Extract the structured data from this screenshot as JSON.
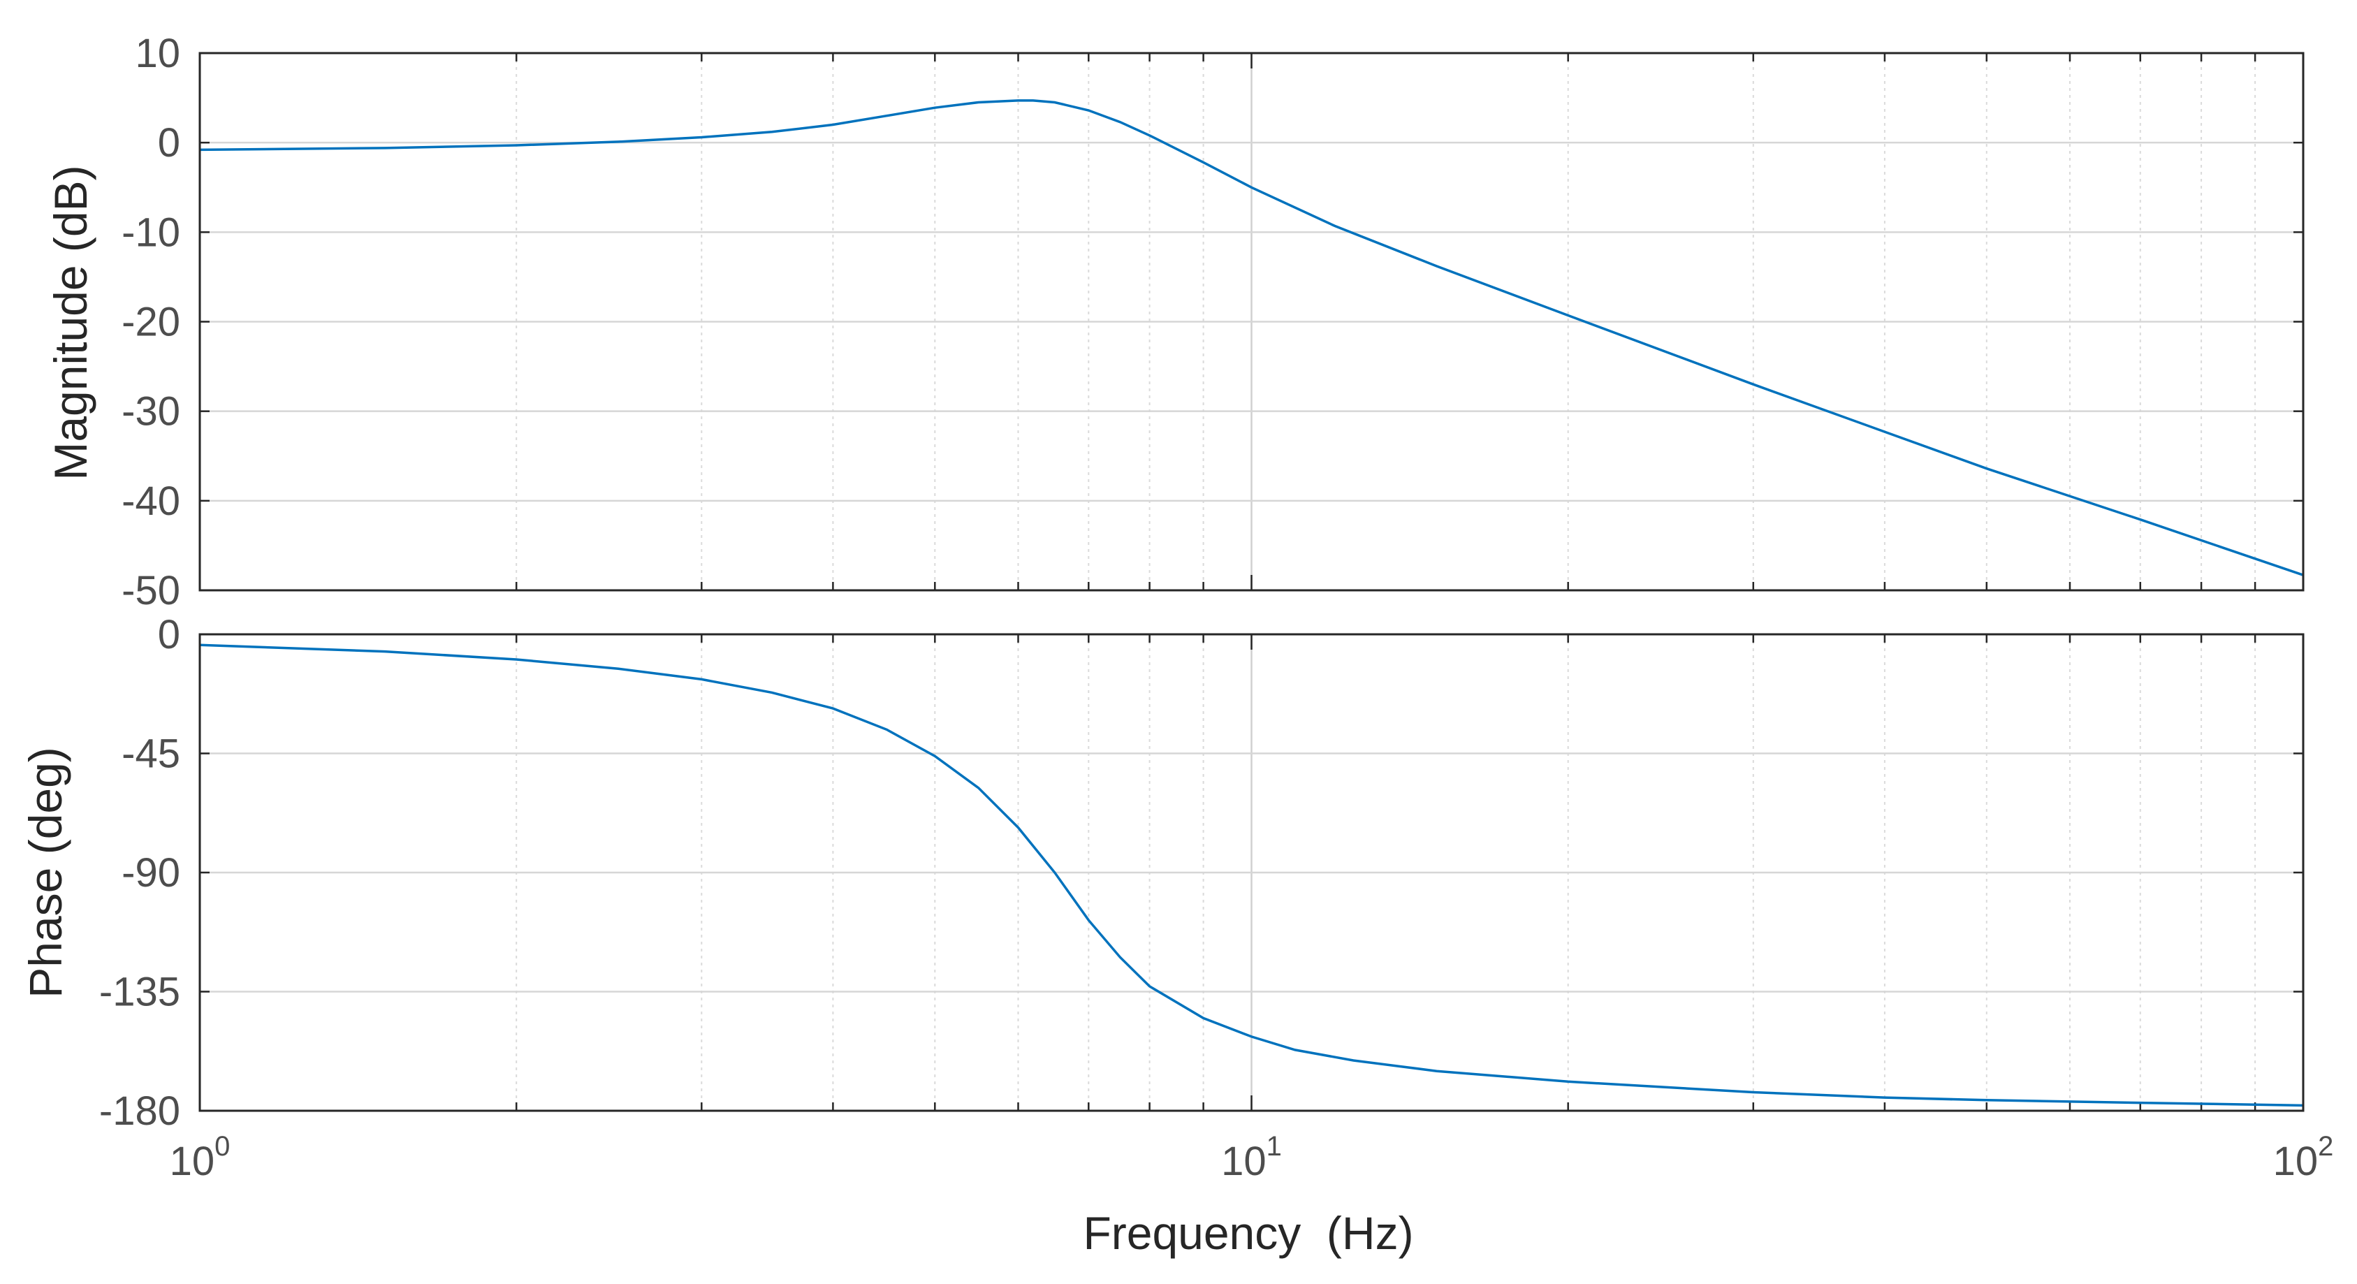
{
  "chart_data": [
    {
      "type": "line",
      "title": "",
      "xlabel": "",
      "ylabel": "Magnitude (dB)",
      "xscale": "log",
      "xlim": [
        1,
        100
      ],
      "ylim": [
        -50,
        10
      ],
      "yticks": [
        "10",
        "0",
        "-10",
        "-20",
        "-30",
        "-40",
        "-50"
      ],
      "grid": true,
      "color": "#0072BD",
      "x": [
        1,
        1.5,
        2,
        2.5,
        3,
        3.5,
        4,
        4.5,
        5,
        5.5,
        6,
        6.2,
        6.5,
        7,
        7.5,
        8,
        9,
        10,
        12,
        15,
        20,
        30,
        40,
        50,
        70,
        100
      ],
      "y": [
        -0.8,
        -0.6,
        -0.3,
        0.1,
        0.6,
        1.2,
        2.0,
        3.0,
        3.9,
        4.5,
        4.7,
        4.7,
        4.5,
        3.6,
        2.3,
        0.8,
        -2.2,
        -5.0,
        -9.3,
        -13.8,
        -19.3,
        -27.0,
        -32.3,
        -36.4,
        -42.1,
        -48.3
      ]
    },
    {
      "type": "line",
      "title": "",
      "xlabel": "Frequency  (Hz)",
      "ylabel": "Phase (deg)",
      "xscale": "log",
      "xlim": [
        1,
        100
      ],
      "ylim": [
        -180,
        0
      ],
      "yticks": [
        "0",
        "-45",
        "-90",
        "-135",
        "-180"
      ],
      "xticks": [
        {
          "base": "10",
          "exp": "0",
          "value": 1
        },
        {
          "base": "10",
          "exp": "1",
          "value": 10
        },
        {
          "base": "10",
          "exp": "2",
          "value": 100
        }
      ],
      "grid": true,
      "color": "#0072BD",
      "x": [
        1,
        1.5,
        2,
        2.5,
        3,
        3.5,
        4,
        4.5,
        5,
        5.5,
        6,
        6.5,
        7,
        7.5,
        8,
        9,
        10,
        11,
        12.5,
        15,
        20,
        30,
        40,
        50,
        70,
        100
      ],
      "y": [
        -4,
        -6.5,
        -9.5,
        -13,
        -17,
        -22,
        -28,
        -36,
        -46,
        -58,
        -73,
        -90,
        -108,
        -122,
        -133,
        -145,
        -152,
        -157,
        -161,
        -165,
        -169,
        -173,
        -175,
        -176,
        -177,
        -178
      ]
    }
  ]
}
